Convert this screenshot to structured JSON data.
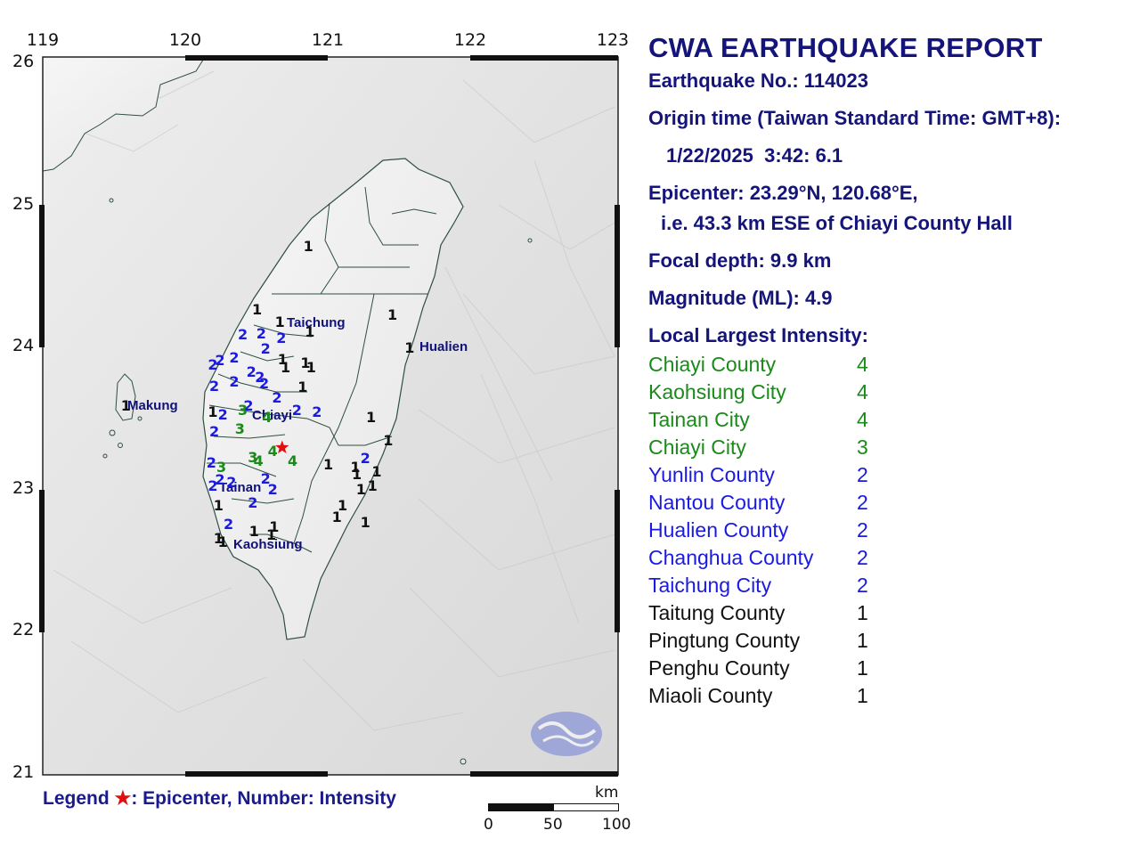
{
  "map": {
    "lon_ticks": [
      "119",
      "120",
      "121",
      "122",
      "123"
    ],
    "lat_ticks": [
      "26",
      "25",
      "24",
      "23",
      "22",
      "21"
    ],
    "cities": [
      {
        "name": "Taichung"
      },
      {
        "name": "Hualien"
      },
      {
        "name": "Makung"
      },
      {
        "name": "Chiayi"
      },
      {
        "name": "Tainan"
      },
      {
        "name": "Kaohsiung"
      }
    ],
    "epicenter": {
      "lat": 23.29,
      "lon": 120.68,
      "marker": "red-star"
    },
    "intensity_colors": {
      "4": "#1a8a1a",
      "3": "#1a8a1a",
      "2": "#1a1ae0",
      "1": "#111111"
    },
    "stations": [
      {
        "v": "1",
        "lat": 24.7,
        "lon": 120.86
      },
      {
        "v": "1",
        "lat": 24.26,
        "lon": 120.5
      },
      {
        "v": "1",
        "lat": 24.17,
        "lon": 120.66
      },
      {
        "v": "1",
        "lat": 24.22,
        "lon": 121.45
      },
      {
        "v": "1",
        "lat": 24.1,
        "lon": 120.87
      },
      {
        "v": "1",
        "lat": 23.99,
        "lon": 121.57
      },
      {
        "v": "1",
        "lat": 23.91,
        "lon": 120.68
      },
      {
        "v": "1",
        "lat": 23.88,
        "lon": 120.84
      },
      {
        "v": "1",
        "lat": 23.85,
        "lon": 120.88
      },
      {
        "v": "1",
        "lat": 23.85,
        "lon": 120.7
      },
      {
        "v": "1",
        "lat": 23.71,
        "lon": 120.82
      },
      {
        "v": "1",
        "lat": 23.54,
        "lon": 120.19
      },
      {
        "v": "1",
        "lat": 23.5,
        "lon": 121.3
      },
      {
        "v": "1",
        "lat": 23.34,
        "lon": 121.42
      },
      {
        "v": "1",
        "lat": 23.17,
        "lon": 121.0
      },
      {
        "v": "1",
        "lat": 23.15,
        "lon": 121.19
      },
      {
        "v": "1",
        "lat": 23.12,
        "lon": 121.34
      },
      {
        "v": "1",
        "lat": 23.1,
        "lon": 121.2
      },
      {
        "v": "1",
        "lat": 23.02,
        "lon": 121.31
      },
      {
        "v": "1",
        "lat": 22.99,
        "lon": 121.23
      },
      {
        "v": "1",
        "lat": 22.88,
        "lon": 121.1
      },
      {
        "v": "1",
        "lat": 22.88,
        "lon": 120.23
      },
      {
        "v": "1",
        "lat": 22.8,
        "lon": 121.06
      },
      {
        "v": "1",
        "lat": 22.76,
        "lon": 121.26
      },
      {
        "v": "1",
        "lat": 22.73,
        "lon": 120.62
      },
      {
        "v": "1",
        "lat": 22.7,
        "lon": 120.48
      },
      {
        "v": "1",
        "lat": 22.67,
        "lon": 120.6
      },
      {
        "v": "1",
        "lat": 22.65,
        "lon": 120.23
      },
      {
        "v": "1",
        "lat": 22.62,
        "lon": 120.26
      },
      {
        "v": "1",
        "lat": 23.58,
        "lon": 119.58
      },
      {
        "v": "2",
        "lat": 24.08,
        "lon": 120.4
      },
      {
        "v": "2",
        "lat": 24.09,
        "lon": 120.53
      },
      {
        "v": "2",
        "lat": 24.06,
        "lon": 120.67
      },
      {
        "v": "2",
        "lat": 23.98,
        "lon": 120.56
      },
      {
        "v": "2",
        "lat": 23.92,
        "lon": 120.34
      },
      {
        "v": "2",
        "lat": 23.9,
        "lon": 120.24
      },
      {
        "v": "2",
        "lat": 23.87,
        "lon": 120.19
      },
      {
        "v": "2",
        "lat": 23.82,
        "lon": 120.46
      },
      {
        "v": "2",
        "lat": 23.75,
        "lon": 120.34
      },
      {
        "v": "2",
        "lat": 23.78,
        "lon": 120.52
      },
      {
        "v": "2",
        "lat": 23.74,
        "lon": 120.55
      },
      {
        "v": "2",
        "lat": 23.72,
        "lon": 120.2
      },
      {
        "v": "2",
        "lat": 23.64,
        "lon": 120.64
      },
      {
        "v": "2",
        "lat": 23.58,
        "lon": 120.44
      },
      {
        "v": "2",
        "lat": 23.52,
        "lon": 120.26
      },
      {
        "v": "2",
        "lat": 23.55,
        "lon": 120.78
      },
      {
        "v": "2",
        "lat": 23.54,
        "lon": 120.92
      },
      {
        "v": "2",
        "lat": 23.4,
        "lon": 120.2
      },
      {
        "v": "2",
        "lat": 23.21,
        "lon": 121.26
      },
      {
        "v": "2",
        "lat": 23.18,
        "lon": 120.18
      },
      {
        "v": "2",
        "lat": 23.06,
        "lon": 120.24
      },
      {
        "v": "2",
        "lat": 23.04,
        "lon": 120.32
      },
      {
        "v": "2",
        "lat": 23.07,
        "lon": 120.56
      },
      {
        "v": "2",
        "lat": 23.02,
        "lon": 120.19
      },
      {
        "v": "2",
        "lat": 22.99,
        "lon": 120.61
      },
      {
        "v": "2",
        "lat": 22.9,
        "lon": 120.47
      },
      {
        "v": "2",
        "lat": 22.75,
        "lon": 120.3
      },
      {
        "v": "3",
        "lat": 23.55,
        "lon": 120.4
      },
      {
        "v": "3",
        "lat": 23.42,
        "lon": 120.38
      },
      {
        "v": "3",
        "lat": 23.15,
        "lon": 120.25
      },
      {
        "v": "3",
        "lat": 23.22,
        "lon": 120.47
      },
      {
        "v": "4",
        "lat": 23.5,
        "lon": 120.57
      },
      {
        "v": "4",
        "lat": 23.26,
        "lon": 120.61
      },
      {
        "v": "4",
        "lat": 23.19,
        "lon": 120.51
      },
      {
        "v": "4",
        "lat": 23.19,
        "lon": 120.75
      }
    ]
  },
  "legend": {
    "label": "Legend",
    "star": "★",
    "text": ": Epicenter, Number: Intensity"
  },
  "scale": {
    "unit": "km",
    "ticks": [
      "0",
      "50",
      "100"
    ]
  },
  "report": {
    "title": "CWA EARTHQUAKE REPORT",
    "eq_no": "Earthquake No.: 114023",
    "origin_label": "Origin time (Taiwan Standard Time: GMT+8):",
    "origin_value": "1/22/2025  3:42: 6.1",
    "epicenter_line1": "Epicenter: 23.29°N, 120.68°E,",
    "epicenter_line2": "i.e. 43.3 km ESE of Chiayi County Hall",
    "depth": "Focal depth: 9.9 km",
    "magnitude": "Magnitude (ML): 4.9",
    "intensity_header": "Local Largest Intensity:",
    "intensities": [
      {
        "region": "Chiayi County",
        "value": "4",
        "color": "#1a8a1a"
      },
      {
        "region": "Kaohsiung City",
        "value": "4",
        "color": "#1a8a1a"
      },
      {
        "region": "Tainan City",
        "value": "4",
        "color": "#1a8a1a"
      },
      {
        "region": "Chiayi City",
        "value": "3",
        "color": "#1a8a1a"
      },
      {
        "region": "Yunlin County",
        "value": "2",
        "color": "#1a1ae0"
      },
      {
        "region": "Nantou County",
        "value": "2",
        "color": "#1a1ae0"
      },
      {
        "region": "Hualien County",
        "value": "2",
        "color": "#1a1ae0"
      },
      {
        "region": "Changhua County",
        "value": "2",
        "color": "#1a1ae0"
      },
      {
        "region": "Taichung City",
        "value": "2",
        "color": "#1a1ae0"
      },
      {
        "region": "Taitung County",
        "value": "1",
        "color": "#111111"
      },
      {
        "region": "Pingtung County",
        "value": "1",
        "color": "#111111"
      },
      {
        "region": "Penghu County",
        "value": "1",
        "color": "#111111"
      },
      {
        "region": "Miaoli County",
        "value": "1",
        "color": "#111111"
      }
    ]
  }
}
